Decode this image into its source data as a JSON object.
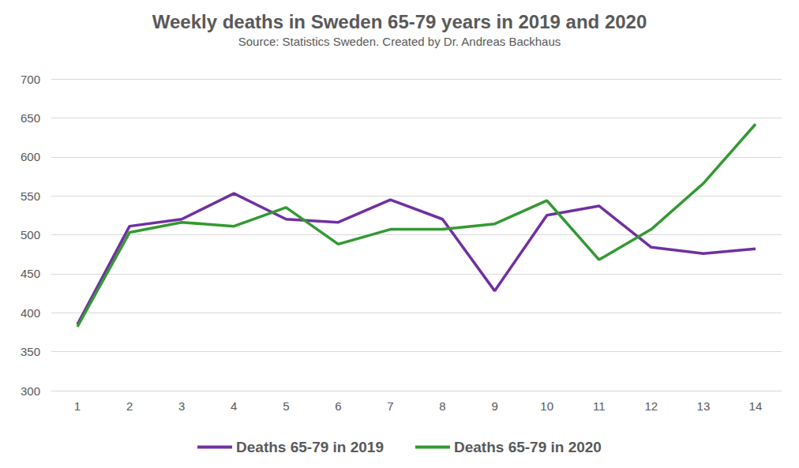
{
  "chart_data": {
    "type": "line",
    "title": "Weekly deaths in Sweden 65-79 years in 2019 and 2020",
    "subtitle": "Source: Statistics Sweden. Created by Dr. Andreas Backhaus",
    "categories": [
      "1",
      "2",
      "3",
      "4",
      "5",
      "6",
      "7",
      "8",
      "9",
      "10",
      "11",
      "12",
      "13",
      "14"
    ],
    "series": [
      {
        "name": "Deaths 65-79 in 2019",
        "color": "#7030a0",
        "values": [
          385,
          511,
          520,
          553,
          520,
          516,
          545,
          520,
          428,
          525,
          537,
          484,
          476,
          482
        ]
      },
      {
        "name": "Deaths 65-79 in 2020",
        "color": "#339933",
        "values": [
          382,
          503,
          516,
          511,
          535,
          488,
          507,
          507,
          514,
          544,
          468,
          507,
          566,
          642
        ]
      }
    ],
    "ylim": [
      300,
      700
    ],
    "yticks": [
      300,
      350,
      400,
      450,
      500,
      550,
      600,
      650,
      700
    ],
    "grid": true,
    "legend": "bottom",
    "marker": "none",
    "line_style": "solid"
  }
}
